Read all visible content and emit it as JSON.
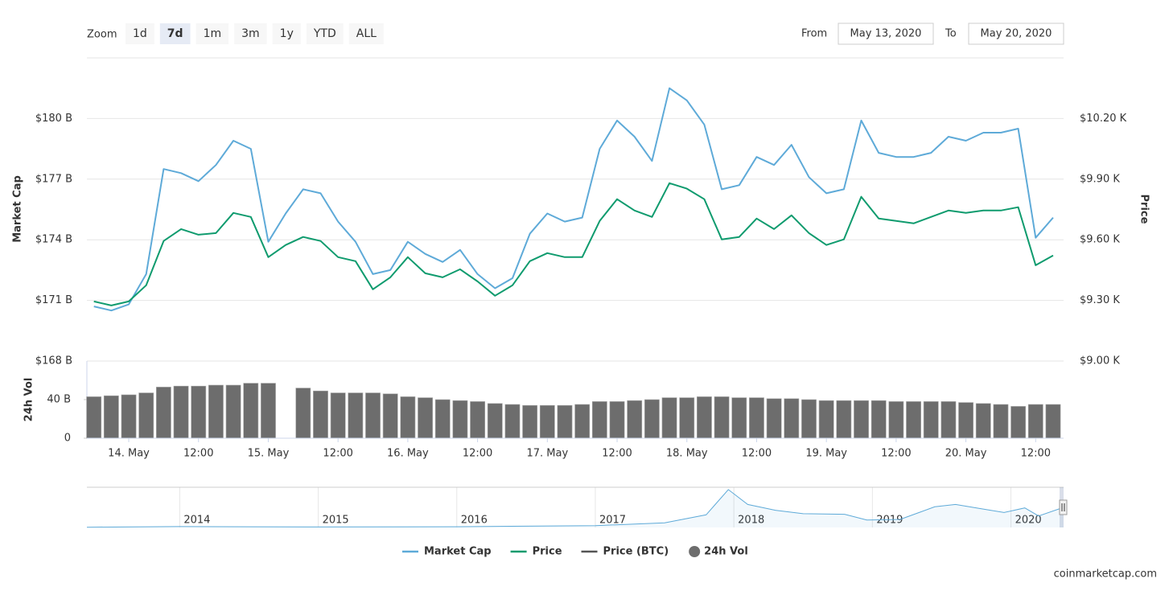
{
  "controls": {
    "zoom_label": "Zoom",
    "zoom_buttons": [
      "1d",
      "7d",
      "1m",
      "3m",
      "1y",
      "YTD",
      "ALL"
    ],
    "selected_zoom": "7d",
    "from_label": "From",
    "from": "May 13, 2020",
    "to_label": "To",
    "to": "May 20, 2020"
  },
  "credit": "coinmarketcap.com",
  "chart_data": [
    {
      "type": "line",
      "ylabel": "Market Cap",
      "y2label": "Price",
      "x": [
        13.75,
        13.875,
        14,
        14.125,
        14.25,
        14.375,
        14.5,
        14.625,
        14.75,
        14.875,
        15,
        15.125,
        15.25,
        15.375,
        15.5,
        15.625,
        15.75,
        15.875,
        16,
        16.125,
        16.25,
        16.375,
        16.5,
        16.625,
        16.75,
        16.875,
        17,
        17.125,
        17.25,
        17.375,
        17.5,
        17.625,
        17.75,
        17.875,
        18,
        18.125,
        18.25,
        18.375,
        18.5,
        18.625,
        18.75,
        18.875,
        19,
        19.125,
        19.25,
        19.375,
        19.5,
        19.625,
        19.75,
        19.875,
        20,
        20.125,
        20.25,
        20.375,
        20.5,
        20.625
      ],
      "xlim": [
        13.7,
        20.7
      ],
      "series": [
        {
          "name": "Market Cap",
          "color": "#5eaad8",
          "values": [
            170.7,
            170.5,
            170.8,
            172.3,
            177.5,
            177.3,
            176.9,
            177.7,
            178.9,
            178.5,
            173.9,
            175.3,
            176.5,
            176.3,
            174.9,
            173.9,
            172.3,
            172.5,
            173.9,
            173.3,
            172.9,
            173.5,
            172.3,
            171.6,
            172.1,
            174.3,
            175.3,
            174.9,
            175.1,
            178.5,
            179.9,
            179.1,
            177.9,
            181.5,
            180.9,
            179.7,
            176.5,
            176.7,
            178.1,
            177.7,
            178.7,
            177.1,
            176.3,
            176.5,
            179.9,
            178.3,
            178.1,
            178.1,
            178.3,
            179.1,
            178.9,
            179.3,
            179.3,
            179.5,
            174.1,
            175.1
          ]
        },
        {
          "name": "Price",
          "color": "#0f9b6e",
          "axis": "y2",
          "values": [
            9295,
            9275,
            9295,
            9375,
            9594,
            9653,
            9625,
            9633,
            9733,
            9713,
            9514,
            9574,
            9614,
            9594,
            9514,
            9494,
            9355,
            9414,
            9514,
            9434,
            9414,
            9454,
            9394,
            9323,
            9375,
            9494,
            9534,
            9514,
            9514,
            9693,
            9801,
            9745,
            9713,
            9880,
            9853,
            9801,
            9602,
            9614,
            9705,
            9653,
            9721,
            9633,
            9574,
            9602,
            9813,
            9705,
            9693,
            9681,
            9713,
            9745,
            9733,
            9745,
            9745,
            9761,
            9474,
            9522
          ]
        }
      ],
      "hidden_series": [
        {
          "name": "Price (BTC)",
          "color": "#555555"
        }
      ],
      "ylim": [
        168,
        183
      ],
      "yticks": [
        {
          "value": 168,
          "label": "$168 B"
        },
        {
          "value": 171,
          "label": "$171 B"
        },
        {
          "value": 174,
          "label": "$174 B"
        },
        {
          "value": 177,
          "label": "$177 B"
        },
        {
          "value": 180,
          "label": "$180 B"
        }
      ],
      "y2lim": [
        9000,
        10500
      ],
      "y2ticks": [
        {
          "value": 9000,
          "label": "$9.00 K"
        },
        {
          "value": 9300,
          "label": "$9.30 K"
        },
        {
          "value": 9600,
          "label": "$9.60 K"
        },
        {
          "value": 9900,
          "label": "$9.90 K"
        },
        {
          "value": 10200,
          "label": "$10.20 K"
        }
      ],
      "grid": true
    },
    {
      "type": "bar",
      "ylabel": "24h Vol",
      "x": [
        13.75,
        13.875,
        14,
        14.125,
        14.25,
        14.375,
        14.5,
        14.625,
        14.75,
        14.875,
        15,
        15.125,
        15.25,
        15.375,
        15.5,
        15.625,
        15.75,
        15.875,
        16,
        16.125,
        16.25,
        16.375,
        16.5,
        16.625,
        16.75,
        16.875,
        17,
        17.125,
        17.25,
        17.375,
        17.5,
        17.625,
        17.75,
        17.875,
        18,
        18.125,
        18.25,
        18.375,
        18.5,
        18.625,
        18.75,
        18.875,
        19,
        19.125,
        19.25,
        19.375,
        19.5,
        19.625,
        19.75,
        19.875,
        20,
        20.125,
        20.25,
        20.375,
        20.5,
        20.625
      ],
      "xlim": [
        13.7,
        20.7
      ],
      "xticks": [
        {
          "value": 14,
          "label": "14. May"
        },
        {
          "value": 14.5,
          "label": "12:00"
        },
        {
          "value": 15,
          "label": "15. May"
        },
        {
          "value": 15.5,
          "label": "12:00"
        },
        {
          "value": 16,
          "label": "16. May"
        },
        {
          "value": 16.5,
          "label": "12:00"
        },
        {
          "value": 17,
          "label": "17. May"
        },
        {
          "value": 17.5,
          "label": "12:00"
        },
        {
          "value": 18,
          "label": "18. May"
        },
        {
          "value": 18.5,
          "label": "12:00"
        },
        {
          "value": 19,
          "label": "19. May"
        },
        {
          "value": 19.5,
          "label": "12:00"
        },
        {
          "value": 20,
          "label": "20. May"
        },
        {
          "value": 20.5,
          "label": "12:00"
        }
      ],
      "series": [
        {
          "name": "24h Vol",
          "color": "#6d6d6d",
          "values": [
            43,
            44,
            45,
            47,
            53,
            54,
            54,
            55,
            55,
            57,
            57,
            null,
            52,
            49,
            47,
            47,
            47,
            46,
            43,
            42,
            40,
            39,
            38,
            36,
            35,
            34,
            34,
            34,
            35,
            38,
            38,
            39,
            40,
            42,
            42,
            43,
            43,
            42,
            42,
            41,
            41,
            40,
            39,
            39,
            39,
            39,
            38,
            38,
            38,
            38,
            37,
            36,
            35,
            33,
            35,
            35
          ]
        }
      ],
      "ylim": [
        0,
        80
      ],
      "yticks": [
        0,
        {
          "value": 40,
          "label": "40 B"
        }
      ]
    },
    {
      "type": "area",
      "x": [
        2013.33,
        2014,
        2015,
        2016,
        2017,
        2017.5,
        2017.8,
        2017.96,
        2018.1,
        2018.3,
        2018.5,
        2018.8,
        2018.96,
        2019.2,
        2019.45,
        2019.6,
        2019.8,
        2019.95,
        2020.1,
        2020.2,
        2020.38
      ],
      "xlim": [
        2013.33,
        2020.38
      ],
      "xticks": [
        2014,
        2015,
        2016,
        2017,
        2018,
        2019,
        2020
      ],
      "series": [
        {
          "color": "#5eaad8",
          "values": [
            2,
            8,
            4,
            6,
            16,
            40,
            110,
            330,
            200,
            150,
            120,
            115,
            65,
            70,
            180,
            200,
            160,
            130,
            170,
            100,
            175
          ]
        }
      ],
      "ylim": [
        0,
        350
      ]
    }
  ]
}
